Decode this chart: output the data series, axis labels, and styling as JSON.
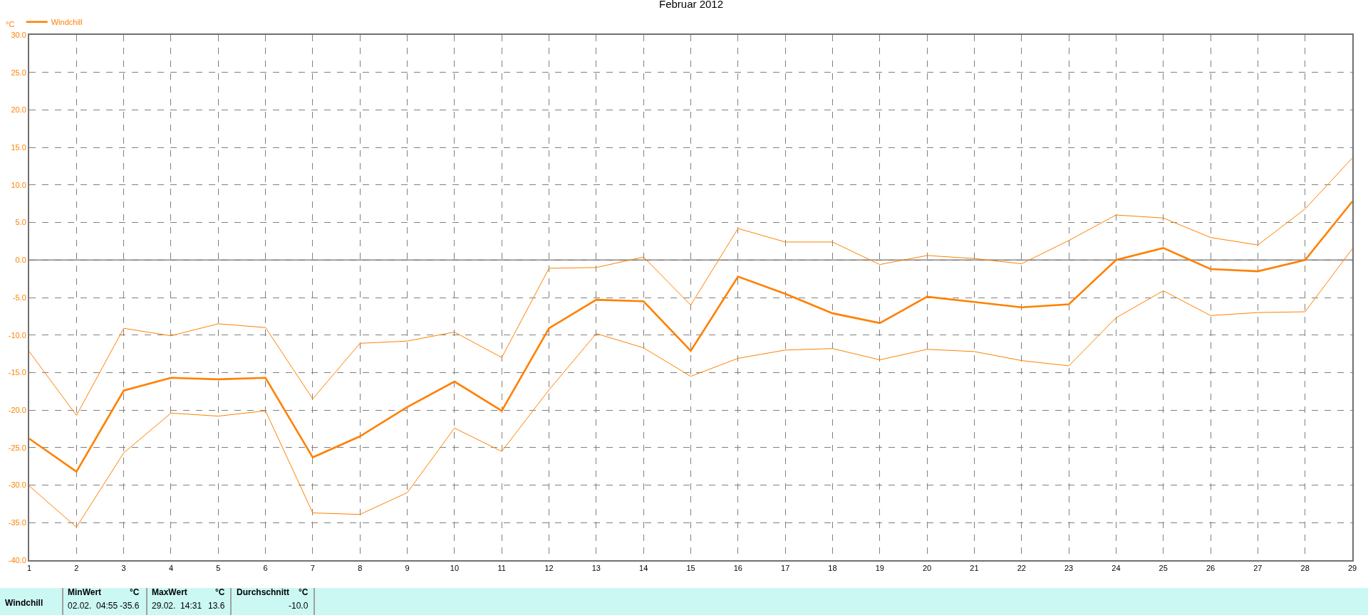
{
  "chart_data": {
    "type": "line",
    "title": "Februar 2012",
    "ylabel": "°C",
    "x": [
      1,
      2,
      3,
      4,
      5,
      6,
      7,
      8,
      9,
      10,
      11,
      12,
      13,
      14,
      15,
      16,
      17,
      18,
      19,
      20,
      21,
      22,
      23,
      24,
      25,
      26,
      27,
      28,
      29
    ],
    "xlim": [
      1,
      29
    ],
    "xticks": [
      1,
      2,
      3,
      4,
      5,
      6,
      7,
      8,
      9,
      10,
      11,
      12,
      13,
      14,
      15,
      16,
      17,
      18,
      19,
      20,
      21,
      22,
      23,
      24,
      25,
      26,
      27,
      28,
      29
    ],
    "ylim": [
      -40,
      30
    ],
    "yticks": [
      {
        "value": -40,
        "label": "-40.0"
      },
      {
        "value": -35,
        "label": "-35.0"
      },
      {
        "value": -30,
        "label": "-30.0"
      },
      {
        "value": -25,
        "label": "-25.0"
      },
      {
        "value": -20,
        "label": "-20.0"
      },
      {
        "value": -15,
        "label": "-15.0"
      },
      {
        "value": -10,
        "label": "-10.0"
      },
      {
        "value": -5,
        "label": "-5.0"
      },
      {
        "value": 0,
        "label": "0.0"
      },
      {
        "value": 5,
        "label": "5.0"
      },
      {
        "value": 10,
        "label": "10.0"
      },
      {
        "value": 15,
        "label": "15.0"
      },
      {
        "value": 20,
        "label": "20.0"
      },
      {
        "value": 25,
        "label": "25.0"
      },
      {
        "value": 30,
        "label": "30.0"
      }
    ],
    "grid": true,
    "legend": "top left",
    "marker": "none",
    "line_style": "solid",
    "ref_lines": [
      {
        "axis": "y",
        "value": 0,
        "color": "#a0a0a0"
      }
    ],
    "series": [
      {
        "color": "#ff8000",
        "values": [
          -12.2,
          -20.7,
          -9.1,
          -10.1,
          -8.5,
          -9.0,
          -18.5,
          -11.1,
          -10.8,
          -9.6,
          -13.0,
          -1.1,
          -1.0,
          0.4,
          -6.0,
          4.2,
          2.4,
          2.4,
          -0.6,
          0.6,
          0.2,
          -0.5,
          2.6,
          6.0,
          5.6,
          3.0,
          2.0,
          6.8,
          13.6
        ]
      },
      {
        "name": "Windchill",
        "color": "#ff8000",
        "values": [
          -23.8,
          -28.2,
          -17.4,
          -15.7,
          -15.9,
          -15.7,
          -26.3,
          -23.5,
          -19.6,
          -16.2,
          -20.1,
          -9.1,
          -5.3,
          -5.5,
          -12.1,
          -2.2,
          -4.5,
          -7.1,
          -8.4,
          -4.9,
          -5.6,
          -6.3,
          -5.9,
          0.0,
          1.6,
          -1.2,
          -1.5,
          0.0,
          7.8
        ]
      },
      {
        "color": "#ff8000",
        "values": [
          -30.1,
          -35.6,
          -25.7,
          -20.4,
          -20.8,
          -20.1,
          -33.7,
          -33.9,
          -31.0,
          -22.4,
          -25.5,
          -17.3,
          -9.8,
          -11.7,
          -15.5,
          -13.1,
          -12.0,
          -11.8,
          -13.3,
          -11.9,
          -12.2,
          -13.4,
          -14.1,
          -7.7,
          -4.1,
          -7.4,
          -7.0,
          -6.9,
          1.5
        ]
      }
    ],
    "annotations": [
      "Windchill",
      "MinWert",
      "°C",
      "02.02.  04:55",
      "-35.6",
      "MaxWert",
      "°C",
      "29.02.  14:31",
      "13.6",
      "Durchschnitt",
      "°C",
      "-10.0"
    ]
  }
}
